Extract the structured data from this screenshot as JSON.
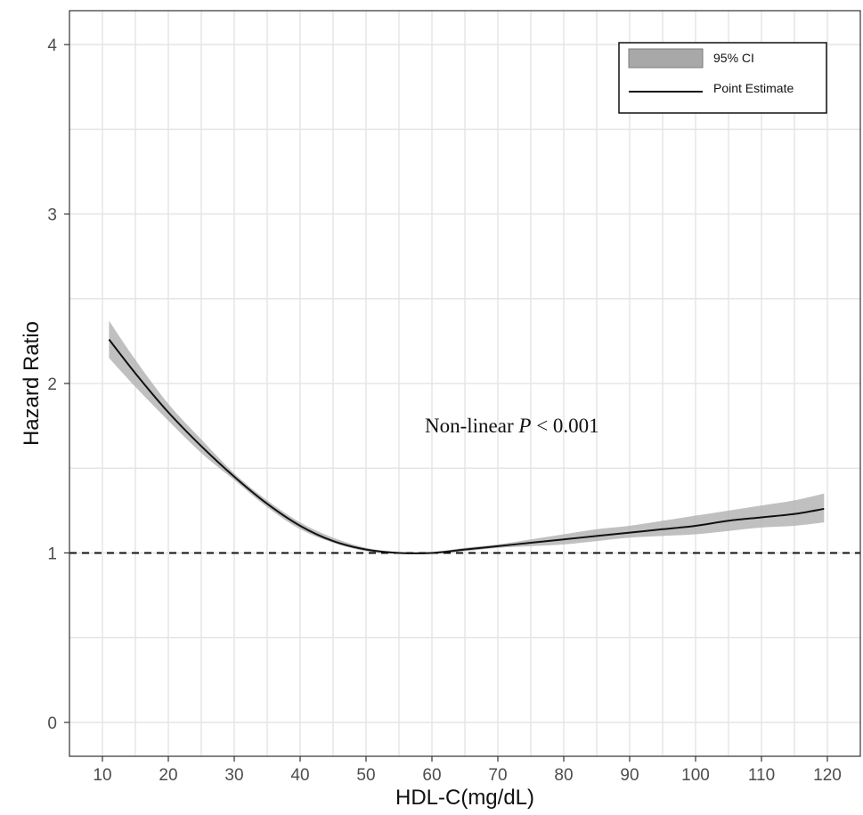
{
  "chart_data": {
    "type": "line",
    "xlabel": "HDL-C(mg/dL)",
    "ylabel": "Hazard Ratio",
    "xlim": [
      5,
      125
    ],
    "ylim": [
      -0.2,
      4.2
    ],
    "x_ticks": [
      10,
      20,
      30,
      40,
      50,
      60,
      70,
      80,
      90,
      100,
      110,
      120
    ],
    "y_ticks": [
      0,
      1,
      2,
      3,
      4
    ],
    "x_tick_labels": [
      "10",
      "20",
      "30",
      "40",
      "50",
      "60",
      "70",
      "80",
      "90",
      "100",
      "110",
      "120"
    ],
    "y_tick_labels": [
      "0",
      "1",
      "2",
      "3",
      "4"
    ],
    "grid": true,
    "legend_position": "top-right",
    "reference_line": {
      "y": 1,
      "style": "dashed"
    },
    "annotation": {
      "prefix": "Non-linear ",
      "italic": "P",
      "suffix": " < 0.001"
    },
    "series": [
      {
        "name": "Point Estimate",
        "x": [
          11,
          15,
          20,
          25,
          30,
          35,
          40,
          45,
          50,
          55,
          60,
          65,
          70,
          75,
          80,
          85,
          90,
          95,
          100,
          105,
          110,
          115,
          119.5
        ],
        "y": [
          2.26,
          2.06,
          1.83,
          1.63,
          1.45,
          1.29,
          1.16,
          1.07,
          1.02,
          1.0,
          1.0,
          1.02,
          1.04,
          1.06,
          1.08,
          1.1,
          1.12,
          1.14,
          1.16,
          1.19,
          1.21,
          1.23,
          1.26
        ]
      },
      {
        "name": "95% CI",
        "x": [
          11,
          15,
          20,
          25,
          30,
          35,
          40,
          45,
          50,
          55,
          60,
          65,
          70,
          75,
          80,
          85,
          90,
          95,
          100,
          105,
          110,
          115,
          119.5
        ],
        "lower": [
          2.15,
          1.98,
          1.78,
          1.59,
          1.43,
          1.27,
          1.14,
          1.06,
          1.01,
          0.995,
          0.995,
          1.01,
          1.03,
          1.04,
          1.05,
          1.07,
          1.09,
          1.1,
          1.11,
          1.13,
          1.15,
          1.16,
          1.18
        ],
        "upper": [
          2.37,
          2.14,
          1.88,
          1.67,
          1.47,
          1.31,
          1.18,
          1.09,
          1.03,
          1.005,
          1.005,
          1.03,
          1.05,
          1.08,
          1.11,
          1.14,
          1.16,
          1.19,
          1.22,
          1.25,
          1.28,
          1.31,
          1.35
        ]
      }
    ]
  },
  "colors": {
    "panel_background": "#ffffff",
    "grid": "#e5e5e5",
    "band": "#b0b0b0",
    "line": "#111111",
    "tick_text": "#4d4d4d"
  }
}
